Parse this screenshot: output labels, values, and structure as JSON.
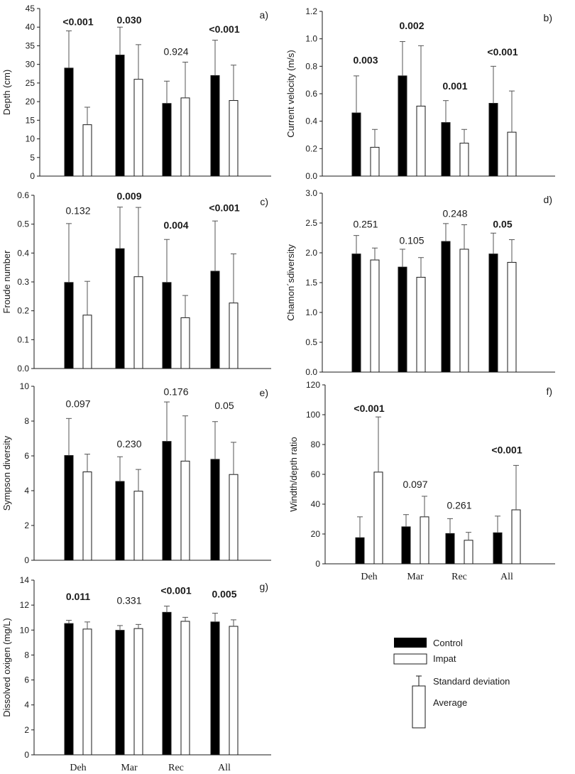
{
  "chart_data": [
    {
      "type": "bar",
      "letter": "a)",
      "ylabel": "Depth (cm)",
      "categories": [
        "Deh",
        "Mar",
        "Rec",
        "All"
      ],
      "show_categories": false,
      "ylim": [
        0,
        45
      ],
      "ticks": [
        0,
        5,
        10,
        15,
        20,
        25,
        30,
        35,
        40,
        45
      ],
      "series": [
        {
          "name": "Control",
          "values": [
            29,
            32.5,
            19.5,
            27
          ],
          "sd": [
            10,
            7.5,
            6,
            9.5
          ]
        },
        {
          "name": "Impat",
          "values": [
            13.8,
            26,
            21,
            20.3
          ],
          "sd": [
            4.7,
            9.3,
            9.6,
            9.5
          ]
        }
      ],
      "pvalues": [
        {
          "text": "<0.001",
          "bold": true,
          "y": 40.5
        },
        {
          "text": "0.030",
          "bold": true,
          "y": 41
        },
        {
          "text": "0.924",
          "bold": false,
          "y": 32.5
        },
        {
          "text": "<0.001",
          "bold": true,
          "y": 38.5
        }
      ]
    },
    {
      "type": "bar",
      "letter": "b)",
      "ylabel": "Current velocity (m/s)",
      "categories": [
        "Deh",
        "Mar",
        "Rec",
        "All"
      ],
      "show_categories": false,
      "ylim": [
        0,
        1.2
      ],
      "ticks": [
        "0.0",
        "0.2",
        "0.4",
        "0.6",
        "0.8",
        "1.0",
        "1.2"
      ],
      "series": [
        {
          "name": "Control",
          "values": [
            0.46,
            0.73,
            0.39,
            0.53
          ],
          "sd": [
            0.27,
            0.25,
            0.16,
            0.27
          ]
        },
        {
          "name": "Impat",
          "values": [
            0.21,
            0.51,
            0.24,
            0.32
          ],
          "sd": [
            0.13,
            0.44,
            0.1,
            0.3
          ]
        }
      ],
      "pvalues": [
        {
          "text": "0.003",
          "bold": true,
          "y": 0.82
        },
        {
          "text": "0.002",
          "bold": true,
          "y": 1.07
        },
        {
          "text": "0.001",
          "bold": true,
          "y": 0.63
        },
        {
          "text": "<0.001",
          "bold": true,
          "y": 0.88
        }
      ]
    },
    {
      "type": "bar",
      "letter": "c)",
      "ylabel": "Froude number",
      "categories": [
        "Deh",
        "Mar",
        "Rec",
        "All"
      ],
      "show_categories": false,
      "ylim": [
        0,
        0.6
      ],
      "ticks": [
        "0.0",
        "0.1",
        "0.2",
        "0.3",
        "0.4",
        "0.5",
        "0.6"
      ],
      "series": [
        {
          "name": "Control",
          "values": [
            0.298,
            0.415,
            0.298,
            0.337
          ],
          "sd": [
            0.204,
            0.144,
            0.149,
            0.174
          ]
        },
        {
          "name": "Impat",
          "values": [
            0.185,
            0.318,
            0.176,
            0.227
          ],
          "sd": [
            0.117,
            0.24,
            0.077,
            0.17
          ]
        }
      ],
      "pvalues": [
        {
          "text": "0.132",
          "bold": false,
          "y": 0.535
        },
        {
          "text": "0.009",
          "bold": true,
          "y": 0.585
        },
        {
          "text": "0.004",
          "bold": true,
          "y": 0.485
        },
        {
          "text": "<0.001",
          "bold": true,
          "y": 0.545
        }
      ]
    },
    {
      "type": "bar",
      "letter": "d)",
      "ylabel": "Chamon´sdiversity",
      "categories": [
        "Deh",
        "Mar",
        "Rec",
        "All"
      ],
      "show_categories": false,
      "ylim": [
        0,
        3
      ],
      "ticks": [
        "0.0",
        "0.5",
        "1.0",
        "1.5",
        "2.0",
        "2.5",
        "3.0"
      ],
      "series": [
        {
          "name": "Control",
          "values": [
            1.98,
            1.76,
            2.19,
            1.98
          ],
          "sd": [
            0.31,
            0.3,
            0.3,
            0.35
          ]
        },
        {
          "name": "Impat",
          "values": [
            1.88,
            1.59,
            2.06,
            1.84
          ],
          "sd": [
            0.2,
            0.33,
            0.41,
            0.38
          ]
        }
      ],
      "pvalues": [
        {
          "text": "0.251",
          "bold": false,
          "y": 2.42
        },
        {
          "text": "0.105",
          "bold": false,
          "y": 2.15
        },
        {
          "text": "0.248",
          "bold": false,
          "y": 2.6
        },
        {
          "text": "0.05",
          "bold": true,
          "y": 2.42
        }
      ]
    },
    {
      "type": "bar",
      "letter": "e)",
      "ylabel": "Sympson diversity",
      "categories": [
        "Deh",
        "Mar",
        "Rec",
        "All"
      ],
      "show_categories": false,
      "ylim": [
        0,
        10
      ],
      "ticks": [
        0,
        2,
        4,
        6,
        8,
        10
      ],
      "series": [
        {
          "name": "Control",
          "values": [
            6.02,
            4.53,
            6.83,
            5.8
          ],
          "sd": [
            2.13,
            1.42,
            2.27,
            2.17
          ]
        },
        {
          "name": "Impat",
          "values": [
            5.08,
            3.97,
            5.7,
            4.93
          ],
          "sd": [
            1.02,
            1.25,
            2.6,
            1.85
          ]
        }
      ],
      "pvalues": [
        {
          "text": "0.097",
          "bold": false,
          "y": 8.8
        },
        {
          "text": "0.230",
          "bold": false,
          "y": 6.5
        },
        {
          "text": "0.176",
          "bold": false,
          "y": 9.5
        },
        {
          "text": "0.05",
          "bold": false,
          "y": 8.7
        }
      ]
    },
    {
      "type": "bar",
      "letter": "f)",
      "ylabel": "Windth/depth ratio",
      "categories": [
        "Deh",
        "Mar",
        "Rec",
        "All"
      ],
      "show_categories": true,
      "ylim": [
        0,
        120
      ],
      "ticks": [
        0,
        20,
        40,
        60,
        80,
        100,
        120
      ],
      "series": [
        {
          "name": "Control",
          "values": [
            17.5,
            24.8,
            20.3,
            20.8
          ],
          "sd": [
            14,
            8.2,
            10,
            11.2
          ]
        },
        {
          "name": "Impat",
          "values": [
            61.5,
            31.5,
            15.8,
            36.2
          ],
          "sd": [
            37,
            13.8,
            5.3,
            29.8
          ]
        }
      ],
      "pvalues": [
        {
          "text": "<0.001",
          "bold": true,
          "y": 102
        },
        {
          "text": "0.097",
          "bold": false,
          "y": 51
        },
        {
          "text": "0.261",
          "bold": false,
          "y": 37
        },
        {
          "text": "<0.001",
          "bold": true,
          "y": 74
        }
      ]
    },
    {
      "type": "bar",
      "letter": "g)",
      "ylabel": "Dissolved oxigen (mg/L)",
      "categories": [
        "Deh",
        "Mar",
        "Rec",
        "All"
      ],
      "show_categories": true,
      "ylim": [
        0,
        14
      ],
      "ticks": [
        0,
        2,
        4,
        6,
        8,
        10,
        12,
        14
      ],
      "series": [
        {
          "name": "Control",
          "values": [
            10.52,
            9.98,
            11.42,
            10.65
          ],
          "sd": [
            0.26,
            0.38,
            0.5,
            0.7
          ]
        },
        {
          "name": "Impat",
          "values": [
            10.08,
            10.12,
            10.7,
            10.3
          ],
          "sd": [
            0.57,
            0.33,
            0.32,
            0.52
          ]
        }
      ],
      "pvalues": [
        {
          "text": "0.011",
          "bold": true,
          "y": 12.4
        },
        {
          "text": "0.331",
          "bold": false,
          "y": 12.1
        },
        {
          "text": "<0.001",
          "bold": true,
          "y": 12.9
        },
        {
          "text": "0.005",
          "bold": true,
          "y": 12.6
        }
      ]
    }
  ],
  "legend": {
    "control": "Control",
    "impact": "Impat",
    "standard_deviation": "Standard deviation",
    "average": "Average"
  }
}
